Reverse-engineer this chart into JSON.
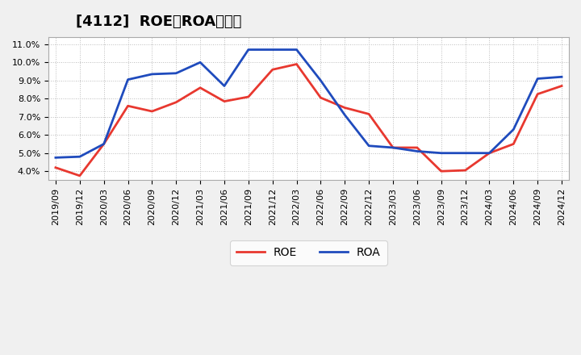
{
  "title": "[4112]  ROE、ROAの推移",
  "x_labels": [
    "2019/09",
    "2019/12",
    "2020/03",
    "2020/06",
    "2020/09",
    "2020/12",
    "2021/03",
    "2021/06",
    "2021/09",
    "2021/12",
    "2022/03",
    "2022/06",
    "2022/09",
    "2022/12",
    "2023/03",
    "2023/06",
    "2023/09",
    "2023/12",
    "2024/03",
    "2024/06",
    "2024/09",
    "2024/12"
  ],
  "roe": [
    4.2,
    3.75,
    5.5,
    7.6,
    7.3,
    7.8,
    8.6,
    7.85,
    8.1,
    9.6,
    9.9,
    8.05,
    7.5,
    7.15,
    5.3,
    5.3,
    4.0,
    4.05,
    5.0,
    5.5,
    8.25,
    8.7
  ],
  "roa": [
    4.75,
    4.8,
    5.5,
    9.05,
    9.35,
    9.4,
    10.0,
    8.7,
    10.7,
    10.7,
    10.7,
    9.0,
    7.1,
    5.4,
    5.3,
    5.1,
    5.0,
    5.0,
    5.0,
    6.3,
    9.1,
    9.2
  ],
  "roe_color": "#e8382f",
  "roa_color": "#1f4bbd",
  "ylim_min": 3.5,
  "ylim_max": 11.4,
  "yticks": [
    4.0,
    5.0,
    6.0,
    7.0,
    8.0,
    9.0,
    10.0,
    11.0
  ],
  "ytick_labels": [
    "4.0%",
    "5.0%",
    "6.0%",
    "7.0%",
    "8.0%",
    "9.0%",
    "10.0%",
    "11.0%"
  ],
  "fig_bg_color": "#f0f0f0",
  "plot_bg_color": "#ffffff",
  "grid_color": "#bbbbbb",
  "legend_roe": "ROE",
  "legend_roa": "ROA",
  "title_fontsize": 13,
  "tick_fontsize": 8,
  "linewidth": 2.0
}
